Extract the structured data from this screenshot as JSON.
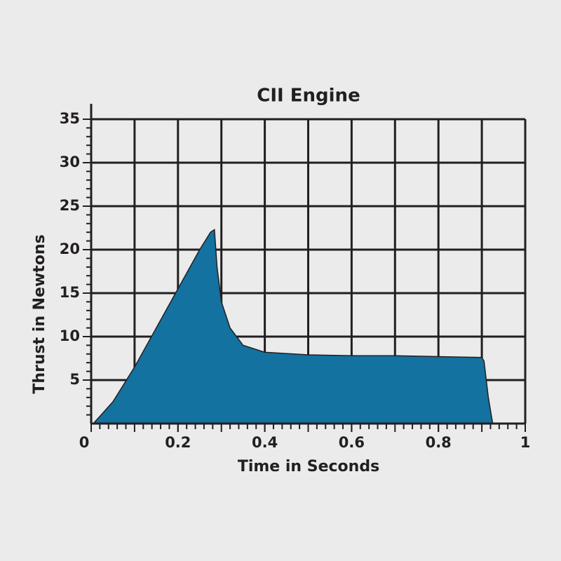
{
  "chart_data": {
    "type": "area",
    "title": "CII Engine",
    "x_label": "Time in Seconds",
    "y_label": "Thrust in Newtons",
    "x": [
      0.005,
      0.05,
      0.1,
      0.15,
      0.2,
      0.25,
      0.275,
      0.284,
      0.29,
      0.3,
      0.32,
      0.35,
      0.4,
      0.5,
      0.6,
      0.7,
      0.8,
      0.9,
      0.905,
      0.915,
      0.925
    ],
    "series": [
      {
        "name": "Thrust",
        "color": "#13729f",
        "values": [
          0,
          2.5,
          6.5,
          11,
          15.5,
          20,
          22,
          22.3,
          18,
          14,
          11,
          9,
          8.2,
          7.9,
          7.8,
          7.8,
          7.7,
          7.6,
          7.2,
          3,
          0
        ]
      }
    ],
    "xlim": [
      0,
      1
    ],
    "ylim": [
      0,
      35
    ],
    "xticks": [
      0,
      0.2,
      0.4,
      0.6,
      0.8,
      1
    ],
    "yticks": [
      5,
      10,
      15,
      20,
      25,
      30,
      35
    ],
    "xgrid": [
      0.1,
      0.2,
      0.3,
      0.4,
      0.5,
      0.6,
      0.7,
      0.8,
      0.9,
      1
    ],
    "ygrid": [
      5,
      10,
      15,
      20,
      25,
      30,
      35
    ],
    "grid": true
  }
}
